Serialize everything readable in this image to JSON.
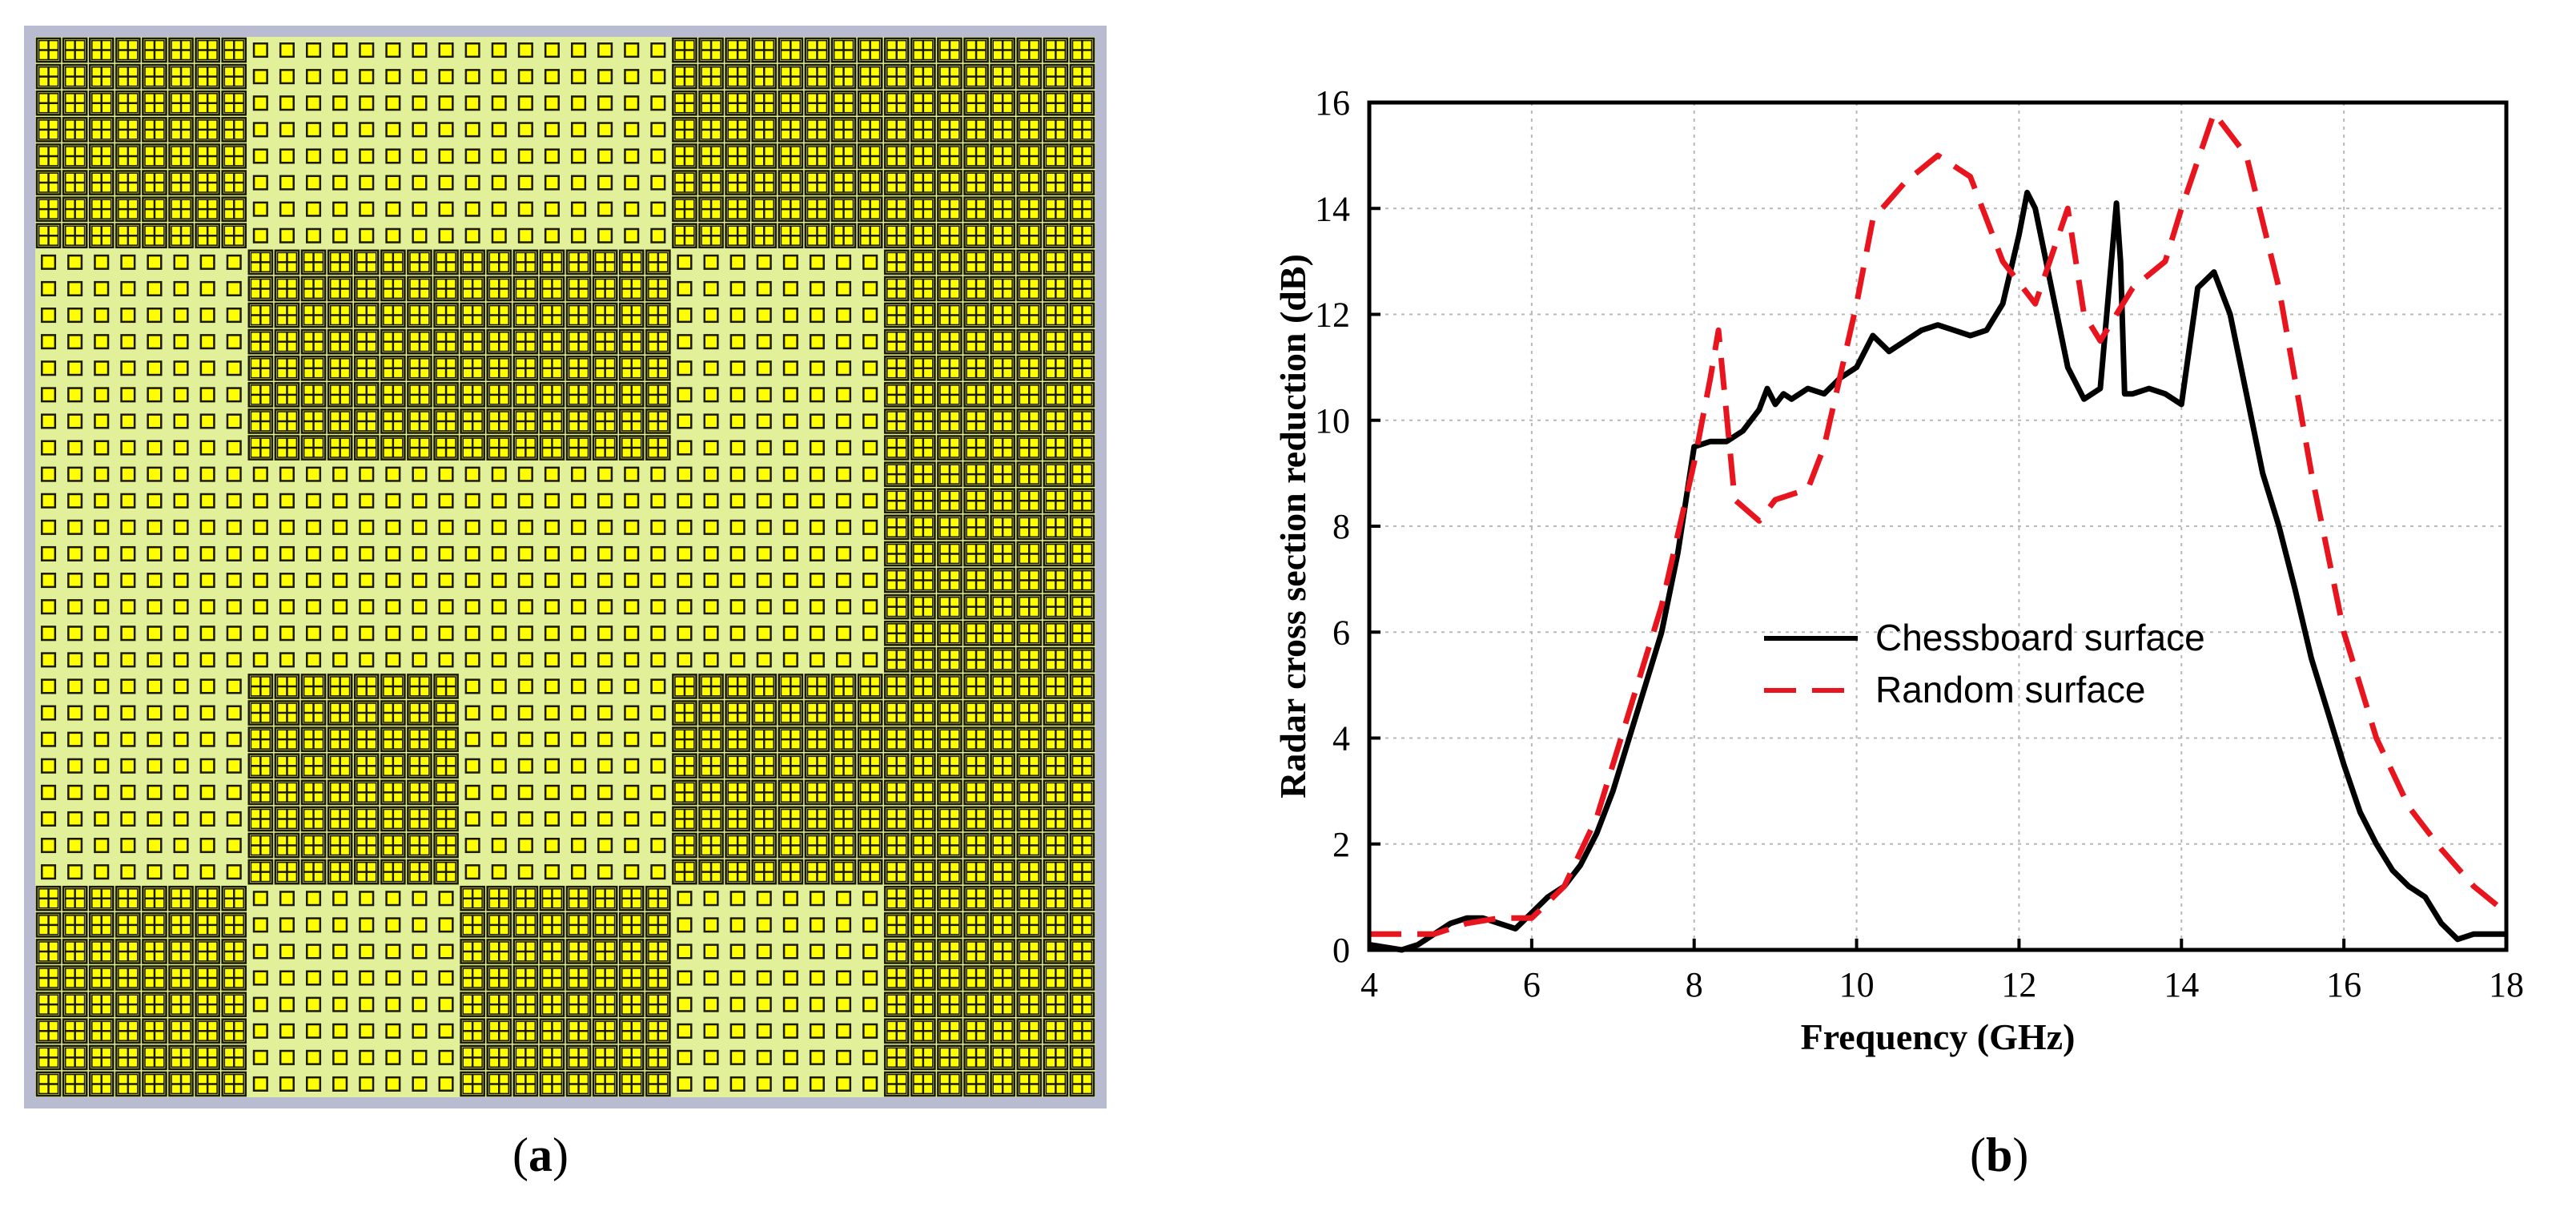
{
  "panel_a": {
    "caption_open": "(",
    "caption_letter": "a",
    "caption_close": ")",
    "tile_pattern": [
      [
        "G",
        "P",
        "P",
        "G",
        "G"
      ],
      [
        "P",
        "G",
        "G",
        "P",
        "G"
      ],
      [
        "P",
        "P",
        "P",
        "P",
        "G"
      ],
      [
        "P",
        "G",
        "P",
        "G",
        "G"
      ],
      [
        "G",
        "P",
        "G",
        "P",
        "G"
      ]
    ],
    "colors": {
      "substrate": "#e3f09a",
      "patch": "#ffff00",
      "patch_stroke": "#1a1a00",
      "frame": "#b9bcd0"
    }
  },
  "panel_b": {
    "caption_open": "(",
    "caption_letter": "b",
    "caption_close": ")"
  },
  "chart_data": {
    "type": "line",
    "title": "",
    "xlabel": "Frequency (GHz)",
    "ylabel": "Radar cross section reduction (dB)",
    "xlim": [
      4,
      18
    ],
    "ylim": [
      0,
      16
    ],
    "xticks": [
      "4",
      "6",
      "8",
      "10",
      "12",
      "14",
      "16",
      "18"
    ],
    "yticks": [
      "0",
      "2",
      "4",
      "6",
      "8",
      "10",
      "12",
      "14",
      "16"
    ],
    "grid": true,
    "legend_position": "center",
    "series": [
      {
        "name": "Chessboard surface",
        "color": "#000000",
        "dash": "solid",
        "x": [
          4.0,
          4.2,
          4.4,
          4.6,
          4.8,
          5.0,
          5.2,
          5.4,
          5.6,
          5.8,
          6.0,
          6.2,
          6.4,
          6.6,
          6.8,
          7.0,
          7.2,
          7.4,
          7.6,
          7.8,
          8.0,
          8.2,
          8.4,
          8.6,
          8.8,
          8.9,
          9.0,
          9.1,
          9.2,
          9.4,
          9.6,
          9.8,
          10.0,
          10.2,
          10.4,
          10.6,
          10.8,
          11.0,
          11.2,
          11.4,
          11.6,
          11.8,
          12.0,
          12.1,
          12.2,
          12.4,
          12.6,
          12.8,
          13.0,
          13.2,
          13.25,
          13.3,
          13.4,
          13.6,
          13.8,
          14.0,
          14.2,
          14.4,
          14.6,
          14.8,
          15.0,
          15.2,
          15.4,
          15.6,
          15.8,
          16.0,
          16.2,
          16.4,
          16.6,
          16.8,
          17.0,
          17.2,
          17.4,
          17.6,
          17.8,
          18.0
        ],
        "values": [
          0.1,
          0.05,
          0.0,
          0.1,
          0.3,
          0.5,
          0.6,
          0.6,
          0.5,
          0.4,
          0.7,
          1.0,
          1.2,
          1.6,
          2.2,
          3.0,
          4.0,
          5.0,
          6.0,
          7.5,
          9.5,
          9.6,
          9.6,
          9.8,
          10.2,
          10.6,
          10.3,
          10.5,
          10.4,
          10.6,
          10.5,
          10.8,
          11.0,
          11.6,
          11.3,
          11.5,
          11.7,
          11.8,
          11.7,
          11.6,
          11.7,
          12.2,
          13.5,
          14.3,
          14.0,
          12.5,
          11.0,
          10.4,
          10.6,
          14.1,
          13.0,
          10.5,
          10.5,
          10.6,
          10.5,
          10.3,
          12.5,
          12.8,
          12.0,
          10.5,
          9.0,
          8.0,
          6.8,
          5.5,
          4.5,
          3.5,
          2.6,
          2.0,
          1.5,
          1.2,
          1.0,
          0.5,
          0.2,
          0.3,
          0.3,
          0.3
        ]
      },
      {
        "name": "Random surface",
        "color": "#e8141e",
        "dash": "dashed",
        "x": [
          4.0,
          4.4,
          4.8,
          5.2,
          5.6,
          6.0,
          6.4,
          6.8,
          7.2,
          7.6,
          8.0,
          8.2,
          8.3,
          8.5,
          8.8,
          9.0,
          9.4,
          9.6,
          10.0,
          10.2,
          10.6,
          11.0,
          11.4,
          11.8,
          12.2,
          12.6,
          12.8,
          13.0,
          13.2,
          13.4,
          13.8,
          14.0,
          14.4,
          14.8,
          15.2,
          15.6,
          16.0,
          16.4,
          16.8,
          17.2,
          17.6,
          18.0
        ],
        "values": [
          0.3,
          0.3,
          0.3,
          0.5,
          0.6,
          0.6,
          1.2,
          2.5,
          4.5,
          6.5,
          9.2,
          10.8,
          11.7,
          8.5,
          8.1,
          8.5,
          8.7,
          9.5,
          12.2,
          13.8,
          14.5,
          15.0,
          14.6,
          13.0,
          12.2,
          14.0,
          12.0,
          11.5,
          12.0,
          12.5,
          13.0,
          14.0,
          15.8,
          15.0,
          12.5,
          9.0,
          6.0,
          4.0,
          2.7,
          1.9,
          1.2,
          0.7
        ]
      }
    ]
  }
}
